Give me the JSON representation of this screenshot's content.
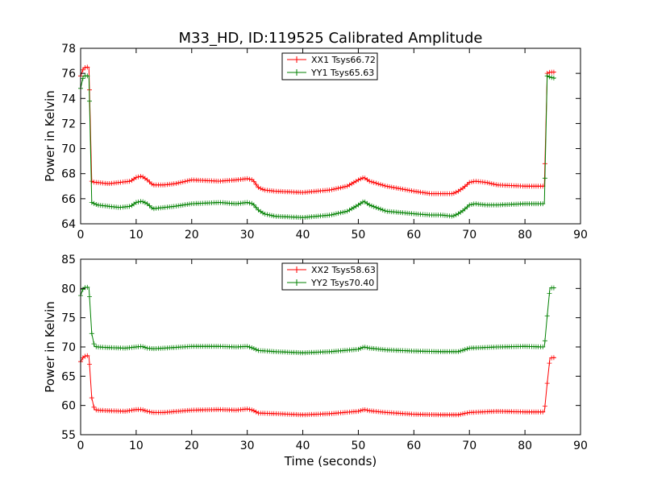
{
  "title": "M33_HD, ID:119525 Calibrated Amplitude",
  "chart_data": [
    {
      "type": "line",
      "title": "M33_HD, ID:119525 Calibrated Amplitude",
      "xlabel": "",
      "ylabel": "Power in Kelvin",
      "xlim": [
        0,
        90
      ],
      "ylim": [
        64,
        78
      ],
      "xticks": [
        "0",
        "10",
        "20",
        "30",
        "40",
        "50",
        "60",
        "70",
        "80",
        "90"
      ],
      "yticks": [
        "64",
        "66",
        "68",
        "70",
        "72",
        "74",
        "76",
        "78"
      ],
      "grid": false,
      "legend": "upper-center",
      "series": [
        {
          "name": "XX1 Tsys66.72",
          "color": "#ff0000",
          "marker": "plus",
          "x": [
            0,
            0.5,
            1,
            1.5,
            2,
            2.5,
            3,
            5,
            7,
            9,
            10,
            11,
            12,
            13,
            15,
            17,
            20,
            25,
            28,
            30,
            31,
            32,
            33,
            35,
            40,
            45,
            48,
            50,
            51,
            52,
            55,
            60,
            63,
            65,
            67,
            68,
            69,
            70,
            71,
            73,
            75,
            80,
            83.5,
            84,
            84.5,
            85.5
          ],
          "y": [
            75.8,
            76.4,
            76.5,
            76.5,
            67.4,
            67.3,
            67.3,
            67.2,
            67.3,
            67.4,
            67.7,
            67.8,
            67.5,
            67.1,
            67.1,
            67.2,
            67.5,
            67.4,
            67.5,
            67.6,
            67.5,
            66.9,
            66.7,
            66.6,
            66.5,
            66.7,
            67.0,
            67.5,
            67.7,
            67.4,
            67.0,
            66.6,
            66.4,
            66.4,
            66.4,
            66.6,
            66.9,
            67.3,
            67.4,
            67.3,
            67.1,
            67.0,
            67.0,
            76.0,
            76.1,
            76.1
          ]
        },
        {
          "name": "YY1 Tsys65.63",
          "color": "#008000",
          "marker": "plus",
          "x": [
            0,
            0.5,
            1,
            1.5,
            2,
            2.5,
            3,
            5,
            7,
            9,
            10,
            11,
            12,
            13,
            15,
            17,
            20,
            25,
            28,
            30,
            31,
            32,
            33,
            35,
            40,
            45,
            48,
            50,
            51,
            52,
            55,
            60,
            63,
            65,
            67,
            68,
            69,
            70,
            71,
            73,
            75,
            80,
            83.5,
            84,
            84.5,
            85.5
          ],
          "y": [
            74.8,
            75.8,
            75.8,
            75.8,
            65.7,
            65.6,
            65.5,
            65.4,
            65.3,
            65.4,
            65.7,
            65.8,
            65.6,
            65.2,
            65.3,
            65.4,
            65.6,
            65.7,
            65.6,
            65.7,
            65.6,
            65.1,
            64.8,
            64.6,
            64.5,
            64.7,
            65.0,
            65.5,
            65.8,
            65.5,
            65.0,
            64.8,
            64.7,
            64.7,
            64.6,
            64.8,
            65.1,
            65.5,
            65.6,
            65.5,
            65.5,
            65.6,
            65.6,
            75.8,
            75.7,
            75.6
          ]
        }
      ]
    },
    {
      "type": "line",
      "title": "",
      "xlabel": "Time (seconds)",
      "ylabel": "Power in Kelvin",
      "xlim": [
        0,
        90
      ],
      "ylim": [
        55,
        85
      ],
      "xticks": [
        "0",
        "10",
        "20",
        "30",
        "40",
        "50",
        "60",
        "70",
        "80",
        "90"
      ],
      "yticks": [
        "55",
        "60",
        "65",
        "70",
        "75",
        "80",
        "85"
      ],
      "grid": false,
      "legend": "upper-center",
      "series": [
        {
          "name": "XX2 Tsys58.63",
          "color": "#ff0000",
          "marker": "plus",
          "x": [
            0,
            0.5,
            1,
            1.5,
            2,
            2.5,
            3,
            5,
            8,
            10,
            11,
            12,
            13,
            15,
            20,
            25,
            28,
            30,
            31,
            32,
            35,
            40,
            45,
            50,
            51,
            52,
            55,
            60,
            65,
            68,
            70,
            75,
            80,
            83.5,
            84,
            84.5,
            85.5
          ],
          "y": [
            67.5,
            68.3,
            68.5,
            68.5,
            61.3,
            59.3,
            59.2,
            59.1,
            59.0,
            59.3,
            59.3,
            59.0,
            58.8,
            58.8,
            59.2,
            59.3,
            59.2,
            59.4,
            59.2,
            58.7,
            58.6,
            58.4,
            58.6,
            59.0,
            59.3,
            59.1,
            58.8,
            58.5,
            58.4,
            58.4,
            58.8,
            59.0,
            58.9,
            58.9,
            63.8,
            68.1,
            68.2
          ]
        },
        {
          "name": "YY2 Tsys70.40",
          "color": "#008000",
          "marker": "plus",
          "x": [
            0,
            0.5,
            1,
            1.5,
            2,
            2.5,
            3,
            5,
            8,
            10,
            11,
            12,
            13,
            15,
            20,
            25,
            28,
            30,
            31,
            32,
            35,
            40,
            45,
            50,
            51,
            52,
            55,
            60,
            65,
            68,
            70,
            75,
            80,
            83.5,
            84,
            84.5,
            85.5
          ],
          "y": [
            78.8,
            80.1,
            80.2,
            80.2,
            72.3,
            70.1,
            70.0,
            69.9,
            69.8,
            70.0,
            70.1,
            69.8,
            69.7,
            69.8,
            70.1,
            70.1,
            70.0,
            70.1,
            69.8,
            69.4,
            69.2,
            69.0,
            69.2,
            69.6,
            70.0,
            69.8,
            69.5,
            69.3,
            69.2,
            69.2,
            69.8,
            70.0,
            70.1,
            70.0,
            75.3,
            80.1,
            80.1
          ]
        }
      ]
    }
  ]
}
